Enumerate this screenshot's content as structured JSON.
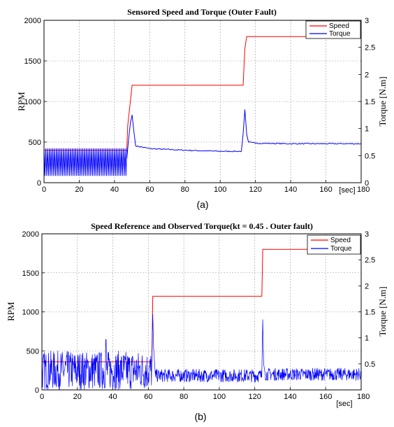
{
  "chart_data": [
    {
      "type": "line",
      "title": "Sensored Speed and Torque (Outer Fault)",
      "ylabel_left": "RPM",
      "ylabel_right": "Torque [N.m]",
      "xunit": "[sec]",
      "subfigure_label": "(a)",
      "xlim": [
        0,
        180
      ],
      "ylim_left": [
        0,
        2000
      ],
      "ylim_right": [
        0,
        3
      ],
      "x_ticks": [
        "0",
        "20",
        "40",
        "60",
        "80",
        "100",
        "120",
        "140",
        "160",
        "180"
      ],
      "y_left_ticks": [
        "0",
        "500",
        "1000",
        "1500",
        "2000"
      ],
      "y_right_ticks": [
        "0",
        "0.5",
        "1",
        "1.5",
        "2",
        "2.5",
        "3"
      ],
      "grid": true,
      "legend_position": "top-right",
      "series": [
        {
          "name": "Speed",
          "color": "#ff0000",
          "axis": "left",
          "x": [
            0,
            47,
            47.5,
            49,
            50,
            51,
            113,
            114,
            115,
            180
          ],
          "y": [
            400,
            400,
            700,
            1000,
            1200,
            1200,
            1200,
            1650,
            1800,
            1800
          ]
        },
        {
          "name": "Torque",
          "color": "#0000ff",
          "axis": "right",
          "x": [
            0,
            47,
            48,
            49,
            50,
            51,
            52,
            60,
            80,
            100,
            112,
            113,
            114,
            115,
            116,
            120,
            140,
            160,
            180
          ],
          "y": [
            0.45,
            0.45,
            0.8,
            1.1,
            1.25,
            0.95,
            0.68,
            0.63,
            0.6,
            0.58,
            0.58,
            0.9,
            1.35,
            0.9,
            0.75,
            0.73,
            0.72,
            0.72,
            0.72
          ],
          "oscillation": {
            "x_range": [
              0,
              47
            ],
            "min": 0.13,
            "max": 0.63,
            "period": 1.0
          }
        }
      ]
    },
    {
      "type": "line",
      "title": "Speed Reference and Observed Torque(kt = 0.45 . Outer fault)",
      "ylabel_left": "RPM",
      "ylabel_right": "Torque [N.m]",
      "xunit": "[sec]",
      "subfigure_label": "(b)",
      "xlim": [
        0,
        180
      ],
      "ylim_left": [
        0,
        2000
      ],
      "ylim_right": [
        0,
        3
      ],
      "x_ticks": [
        "0",
        "20",
        "40",
        "60",
        "80",
        "100",
        "120",
        "140",
        "160",
        "180"
      ],
      "y_left_ticks": [
        "0",
        "500",
        "1000",
        "1500",
        "2000"
      ],
      "y_right_ticks": [
        "0.5",
        "1",
        "1.5",
        "2",
        "2.5",
        "3"
      ],
      "grid": true,
      "legend_position": "top-right",
      "series": [
        {
          "name": "Speed",
          "color": "#ff0000",
          "axis": "left",
          "x": [
            0,
            62,
            62.5,
            124,
            124.5,
            180
          ],
          "y": [
            360,
            360,
            1200,
            1200,
            1800,
            1800
          ]
        },
        {
          "name": "Torque",
          "color": "#0000ff",
          "axis": "right",
          "x": [
            0,
            62,
            62.5,
            63,
            64,
            124,
            124.5,
            125,
            126,
            180
          ],
          "y": [
            0.25,
            0.25,
            1.45,
            0.8,
            0.25,
            0.25,
            1.35,
            0.5,
            0.28,
            0.28
          ],
          "noise": [
            {
              "x_range": [
                0,
                62
              ],
              "min": 0.0,
              "max": 0.75,
              "peak_x": 36,
              "peak_y": 0.97
            },
            {
              "x_range": [
                64,
                124
              ],
              "min": 0.15,
              "max": 0.4
            },
            {
              "x_range": [
                126,
                180
              ],
              "min": 0.18,
              "max": 0.42
            }
          ]
        }
      ]
    }
  ]
}
